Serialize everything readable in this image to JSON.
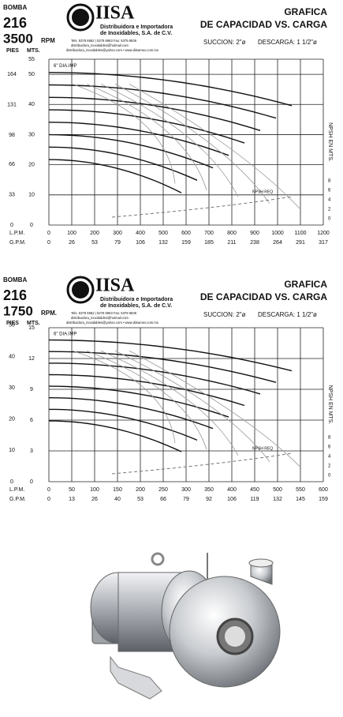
{
  "charts": [
    {
      "bomba": "BOMBA",
      "model": "216",
      "speed": "3500",
      "speed_unit": "RPM",
      "pies_label": "PIES",
      "mts_label": "MTS.",
      "logo": "IISA",
      "company": "Distribuidora e Importadora",
      "company2": "de Inoxidables, S.A. de C.V.",
      "contact1": "Tels. 5378 6962 | 5378 6963 Fax: 5379 8836",
      "contact2": "distribuidora_inoxidables@hotmail.com",
      "contact3": "distribuidora_inoxidables@yahoo.com • www.diisamex.com.mx",
      "title1": "GRAFICA",
      "title2": "DE CAPACIDAD VS. CARGA",
      "suction": "SUCCION: 2\"ø",
      "discharge": "DESCARGA: 1 1/2\"ø",
      "npsh_axis": "NPSH EN MTS.",
      "lpm_label": "L.P.M.",
      "gpm_label": "G.P.M.",
      "impeller": "6\" DIA.IMP",
      "npsh_req": "NPSH REQ",
      "mts": [
        55,
        50,
        40,
        30,
        20,
        10,
        0
      ],
      "pies": [
        164,
        131,
        98,
        66,
        33,
        0
      ],
      "npsh": [
        8,
        6,
        4,
        2,
        0
      ],
      "lpm": [
        0,
        100,
        200,
        300,
        400,
        500,
        600,
        700,
        800,
        900,
        1000,
        1100,
        1200
      ],
      "gpm": [
        0,
        26,
        53,
        79,
        106,
        132,
        159,
        185,
        211,
        238,
        264,
        291,
        317
      ]
    },
    {
      "bomba": "BOMBA",
      "model": "216",
      "speed": "1750",
      "speed_unit": "RPM.",
      "pies_label": "PIES",
      "mts_label": "MTS.",
      "logo": "IISA",
      "company": "Distribuidora e Importadora",
      "company2": "de Inoxidables, S.A. de C.V.",
      "contact1": "Tels. 5378 6962 | 5378 6963 Fax: 5379 8836",
      "contact2": "distribuidora_inoxidables@hotmail.com",
      "contact3": "distribuidora_inoxidables@yahoo.com • www.diisamex.com.mx",
      "title1": "GRAFICA",
      "title2": "DE CAPACIDAD VS. CARGA",
      "suction": "SUCCION: 2\"ø",
      "discharge": "DESCARGA: 1 1/2\"ø",
      "npsh_axis": "NPSH EN MTS.",
      "lpm_label": "L.P.M.",
      "gpm_label": "G.P.M.",
      "impeller": "6\" DIA.IMP",
      "npsh_req": "NPSH REQ",
      "mts": [
        15,
        12,
        9,
        6,
        3,
        0
      ],
      "pies": [
        50,
        40,
        30,
        20,
        10,
        0
      ],
      "npsh": [
        8,
        6,
        4,
        2,
        0
      ],
      "lpm": [
        0,
        50,
        100,
        150,
        200,
        250,
        300,
        350,
        400,
        450,
        500,
        550,
        600
      ],
      "gpm": [
        0,
        13,
        26,
        40,
        53,
        66,
        79,
        92,
        106,
        119,
        132,
        145,
        159
      ]
    }
  ]
}
